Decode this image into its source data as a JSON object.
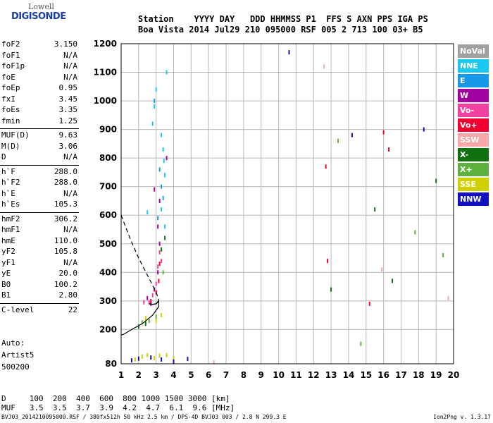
{
  "logo": {
    "line1": "Lowell",
    "line2": "DIGISONDE"
  },
  "header": {
    "row1": "Station    YYYY DAY   DDD HHMMSS P1  FFS S AXN PPS IGA PS",
    "row2": "Boa Vista 2014 Jul29 210 095000 RSF 005 2 713 100 03+ B5"
  },
  "params_groups": [
    [
      {
        "name": "foF2",
        "value": "3.150"
      },
      {
        "name": "foF1",
        "value": "N/A"
      },
      {
        "name": "foF1p",
        "value": "N/A"
      },
      {
        "name": "foE",
        "value": "N/A"
      },
      {
        "name": "foEp",
        "value": "0.95"
      },
      {
        "name": "fxI",
        "value": "3.45"
      },
      {
        "name": "foEs",
        "value": "3.35"
      },
      {
        "name": "fmin",
        "value": "1.25"
      }
    ],
    [
      {
        "name": "MUF(D)",
        "value": "9.63"
      },
      {
        "name": "M(D)",
        "value": "3.06"
      },
      {
        "name": "D",
        "value": "N/A"
      }
    ],
    [
      {
        "name": "h`F",
        "value": "288.0"
      },
      {
        "name": "h`F2",
        "value": "288.0"
      },
      {
        "name": "h`E",
        "value": "N/A"
      },
      {
        "name": "h`Es",
        "value": "105.3"
      }
    ],
    [
      {
        "name": "hmF2",
        "value": "306.2"
      },
      {
        "name": "hmF1",
        "value": "N/A"
      },
      {
        "name": "hmE",
        "value": "110.0"
      },
      {
        "name": "yF2",
        "value": "105.8"
      },
      {
        "name": "yF1",
        "value": "N/A"
      },
      {
        "name": "yE",
        "value": "20.0"
      },
      {
        "name": "B0",
        "value": "100.2"
      },
      {
        "name": "B1",
        "value": "2.80"
      }
    ],
    [
      {
        "name": "C-level",
        "value": "22"
      }
    ]
  ],
  "auto": {
    "line1": "Auto:",
    "line2": "Artist5",
    "line3": "500200"
  },
  "legend": [
    {
      "label": "NoVal",
      "color": "#a0a0a0"
    },
    {
      "label": "NNE",
      "color": "#18c8f0"
    },
    {
      "label": "E",
      "color": "#1898e8"
    },
    {
      "label": "W",
      "color": "#a000a0"
    },
    {
      "label": "Vo-",
      "color": "#f040a0"
    },
    {
      "label": "Vo+",
      "color": "#f00030"
    },
    {
      "label": "SSW",
      "color": "#f8a8a8"
    },
    {
      "label": "X-",
      "color": "#107010"
    },
    {
      "label": "X+",
      "color": "#60b040"
    },
    {
      "label": "SSE",
      "color": "#d0d000"
    },
    {
      "label": "NNW",
      "color": "#1010c0"
    }
  ],
  "footer": {
    "d_row": "D     100  200  400  600  800 1000 1500 3000 [km]",
    "muf_row": "MUF   3.5  3.5  3.7  3.9  4.2  4.7  6.1  9.6 [MHz]",
    "source": "BVJ03_2014210095000.RSF / 380fx512h 50 kHz 2.5 km / DPS-4D BVJ03 003 / 2.8 N 299.3 E",
    "version": "Ion2Png v. 1.3.17"
  },
  "chart_data": {
    "type": "scatter",
    "xlim": [
      1,
      20
    ],
    "ylim": [
      80,
      1200
    ],
    "x_ticks": [
      1,
      2,
      3,
      4,
      5,
      6,
      7,
      8,
      9,
      10,
      11,
      12,
      13,
      14,
      15,
      16,
      17,
      18,
      19,
      20
    ],
    "y_ticks": [
      80,
      200,
      300,
      400,
      500,
      600,
      700,
      800,
      900,
      1000,
      1100,
      1200
    ],
    "grid": true,
    "legend_position": "right",
    "series": [
      {
        "name": "NNE",
        "points": [
          [
            2.8,
            920
          ],
          [
            2.9,
            980
          ],
          [
            3.0,
            1040
          ],
          [
            3.3,
            880
          ],
          [
            3.4,
            830
          ],
          [
            3.45,
            790
          ],
          [
            3.5,
            740
          ],
          [
            3.3,
            620
          ],
          [
            2.5,
            610
          ],
          [
            3.5,
            560
          ],
          [
            3.6,
            1100
          ]
        ]
      },
      {
        "name": "E",
        "points": [
          [
            3.2,
            760
          ],
          [
            3.3,
            700
          ],
          [
            3.4,
            660
          ],
          [
            3.1,
            590
          ],
          [
            2.9,
            1000
          ]
        ]
      },
      {
        "name": "W",
        "points": [
          [
            2.5,
            310
          ],
          [
            2.9,
            340
          ],
          [
            3.1,
            400
          ],
          [
            3.2,
            500
          ],
          [
            3.1,
            560
          ],
          [
            3.2,
            650
          ],
          [
            2.9,
            690
          ],
          [
            2.7,
            290
          ],
          [
            3.6,
            800
          ]
        ]
      },
      {
        "name": "Vo-",
        "points": [
          [
            2.6,
            295
          ],
          [
            2.8,
            320
          ],
          [
            3.0,
            360
          ],
          [
            3.1,
            420
          ],
          [
            3.2,
            470
          ],
          [
            2.3,
            295
          ],
          [
            3.3,
            440
          ]
        ]
      },
      {
        "name": "Vo+",
        "points": [
          [
            2.7,
            300
          ],
          [
            3.0,
            330
          ],
          [
            3.15,
            370
          ],
          [
            3.2,
            430
          ],
          [
            16.0,
            890
          ],
          [
            16.3,
            830
          ],
          [
            12.8,
            440
          ],
          [
            15.2,
            290
          ],
          [
            12.7,
            770
          ]
        ]
      },
      {
        "name": "SSW",
        "points": [
          [
            6.3,
            85
          ],
          [
            12.6,
            1120
          ],
          [
            15.9,
            410
          ],
          [
            19.7,
            310
          ]
        ]
      },
      {
        "name": "X-",
        "points": [
          [
            3.3,
            480
          ],
          [
            3.5,
            520
          ],
          [
            2.0,
            210
          ],
          [
            2.4,
            220
          ],
          [
            13.0,
            340
          ],
          [
            15.5,
            620
          ],
          [
            19.0,
            720
          ],
          [
            16.5,
            370
          ]
        ]
      },
      {
        "name": "X+",
        "points": [
          [
            2.2,
            225
          ],
          [
            2.6,
            230
          ],
          [
            3.0,
            245
          ],
          [
            3.4,
            400
          ],
          [
            13.4,
            860
          ],
          [
            17.8,
            540
          ],
          [
            14.7,
            150
          ],
          [
            19.4,
            460
          ]
        ]
      },
      {
        "name": "SSE",
        "points": [
          [
            1.8,
            95
          ],
          [
            2.2,
            105
          ],
          [
            2.5,
            110
          ],
          [
            2.9,
            100
          ],
          [
            3.2,
            108
          ],
          [
            3.6,
            110
          ],
          [
            4.0,
            100
          ],
          [
            2.4,
            240
          ],
          [
            3.0,
            230
          ],
          [
            3.3,
            250
          ]
        ]
      },
      {
        "name": "NNW",
        "points": [
          [
            1.6,
            92
          ],
          [
            2.0,
            98
          ],
          [
            2.7,
            102
          ],
          [
            3.3,
            95
          ],
          [
            4.0,
            88
          ],
          [
            4.8,
            97
          ],
          [
            10.6,
            1170
          ],
          [
            14.2,
            880
          ],
          [
            18.3,
            900
          ]
        ]
      }
    ],
    "profile_trace": [
      [
        3.15,
        306
      ],
      [
        3.15,
        280
      ],
      [
        2.8,
        250
      ],
      [
        2.2,
        220
      ],
      [
        1.6,
        200
      ],
      [
        1.2,
        185
      ],
      [
        1.0,
        180
      ]
    ],
    "virtual_height_trace": [
      [
        3.15,
        300
      ],
      [
        3.0,
        290
      ],
      [
        2.8,
        288
      ],
      [
        2.6,
        290
      ]
    ],
    "dashed_trace": [
      [
        1.0,
        600
      ],
      [
        1.5,
        520
      ],
      [
        2.0,
        450
      ],
      [
        2.5,
        390
      ],
      [
        3.0,
        330
      ],
      [
        3.15,
        306
      ]
    ]
  }
}
